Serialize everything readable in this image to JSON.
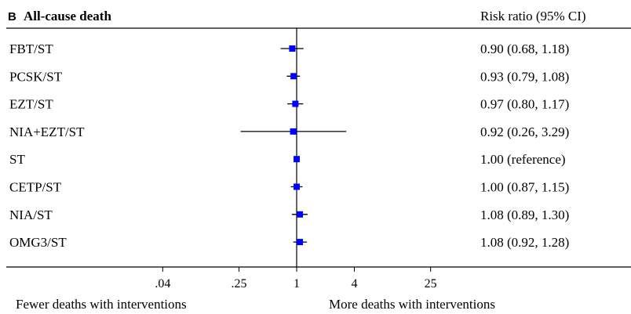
{
  "panel_letter": "B",
  "chart_data": {
    "type": "forest",
    "title": "All-cause death",
    "ci_header": "Risk ratio (95% CI)",
    "scale": "log",
    "reference_value": 1,
    "xlim": [
      0.01,
      130
    ],
    "ticks": [
      {
        "value": 0.04,
        "label": ".04"
      },
      {
        "value": 0.25,
        "label": ".25"
      },
      {
        "value": 1,
        "label": "1"
      },
      {
        "value": 4,
        "label": "4"
      },
      {
        "value": 25,
        "label": "25"
      }
    ],
    "xlabel_left": "Fewer deaths with interventions",
    "xlabel_right": "More deaths with interventions",
    "marker_color": "#0000ff",
    "rows": [
      {
        "label": "FBT/ST",
        "rr": 0.9,
        "lo": 0.68,
        "hi": 1.18,
        "text": "0.90 (0.68, 1.18)"
      },
      {
        "label": "PCSK/ST",
        "rr": 0.93,
        "lo": 0.79,
        "hi": 1.08,
        "text": "0.93 (0.79, 1.08)"
      },
      {
        "label": "EZT/ST",
        "rr": 0.97,
        "lo": 0.8,
        "hi": 1.17,
        "text": "0.97 (0.80, 1.17)"
      },
      {
        "label": "NIA+EZT/ST",
        "rr": 0.92,
        "lo": 0.26,
        "hi": 3.29,
        "text": "0.92 (0.26, 3.29)"
      },
      {
        "label": "ST",
        "rr": 1.0,
        "lo": 1.0,
        "hi": 1.0,
        "text": "1.00 (reference)"
      },
      {
        "label": "CETP/ST",
        "rr": 1.0,
        "lo": 0.87,
        "hi": 1.15,
        "text": "1.00 (0.87, 1.15)"
      },
      {
        "label": "NIA/ST",
        "rr": 1.08,
        "lo": 0.89,
        "hi": 1.3,
        "text": "1.08 (0.89, 1.30)"
      },
      {
        "label": "OMG3/ST",
        "rr": 1.08,
        "lo": 0.92,
        "hi": 1.28,
        "text": "1.08 (0.92, 1.28)"
      }
    ]
  }
}
